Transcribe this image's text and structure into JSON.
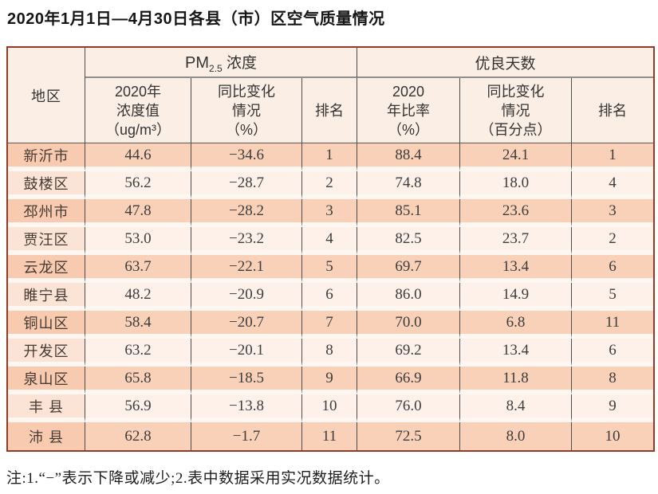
{
  "title": "2020年1月1日—4月30日各县（市）区空气质量情况",
  "table": {
    "corner_header": "地区",
    "group_headers": {
      "pm25": {
        "prefix": "PM",
        "sub": "2.5",
        "suffix": " 浓度"
      },
      "good_days": "优良天数"
    },
    "sub_headers": {
      "pm_value": "2020年\n浓度值\n（ug/m³）",
      "pm_change": "同比变化\n情况\n（%）",
      "pm_rank": "排名",
      "gd_ratio": "2020\n年比率\n（%）",
      "gd_change": "同比变化\n情况\n（百分点）",
      "gd_rank": "排名"
    },
    "rows": [
      {
        "region": "新沂市",
        "pm_value": "44.6",
        "pm_change": "−34.6",
        "pm_rank": "1",
        "gd_ratio": "88.4",
        "gd_change": "24.1",
        "gd_rank": "1"
      },
      {
        "region": "鼓楼区",
        "pm_value": "56.2",
        "pm_change": "−28.7",
        "pm_rank": "2",
        "gd_ratio": "74.8",
        "gd_change": "18.0",
        "gd_rank": "4"
      },
      {
        "region": "邳州市",
        "pm_value": "47.8",
        "pm_change": "−28.2",
        "pm_rank": "3",
        "gd_ratio": "85.1",
        "gd_change": "23.6",
        "gd_rank": "3"
      },
      {
        "region": "贾汪区",
        "pm_value": "53.0",
        "pm_change": "−23.2",
        "pm_rank": "4",
        "gd_ratio": "82.5",
        "gd_change": "23.7",
        "gd_rank": "2"
      },
      {
        "region": "云龙区",
        "pm_value": "63.7",
        "pm_change": "−22.1",
        "pm_rank": "5",
        "gd_ratio": "69.7",
        "gd_change": "13.4",
        "gd_rank": "6"
      },
      {
        "region": "睢宁县",
        "pm_value": "48.2",
        "pm_change": "−20.9",
        "pm_rank": "6",
        "gd_ratio": "86.0",
        "gd_change": "14.9",
        "gd_rank": "5"
      },
      {
        "region": "铜山区",
        "pm_value": "58.4",
        "pm_change": "−20.7",
        "pm_rank": "7",
        "gd_ratio": "70.0",
        "gd_change": "6.8",
        "gd_rank": "11"
      },
      {
        "region": "开发区",
        "pm_value": "63.2",
        "pm_change": "−20.1",
        "pm_rank": "8",
        "gd_ratio": "69.2",
        "gd_change": "13.4",
        "gd_rank": "6"
      },
      {
        "region": "泉山区",
        "pm_value": "65.8",
        "pm_change": "−18.5",
        "pm_rank": "9",
        "gd_ratio": "66.9",
        "gd_change": "11.8",
        "gd_rank": "8"
      },
      {
        "region": "丰 县",
        "pm_value": "56.9",
        "pm_change": "−13.8",
        "pm_rank": "10",
        "gd_ratio": "76.0",
        "gd_change": "8.4",
        "gd_rank": "9"
      },
      {
        "region": "沛 县",
        "pm_value": "62.8",
        "pm_change": "−1.7",
        "pm_rank": "11",
        "gd_ratio": "72.5",
        "gd_change": "8.0",
        "gd_rank": "10"
      }
    ]
  },
  "note": "注:1.“−”表示下降或减少;2.表中数据采用实况数据统计。",
  "colors": {
    "outer_border": "#8f3b26",
    "header_bg": "#fbefe5",
    "row_odd_bg": "#f9d0b8",
    "row_even_bg": "#fdf1e9",
    "row_separator": "#fef7f1",
    "grid_line": "#4d4d4d"
  },
  "chart_data": {
    "type": "table",
    "title": "2020年1月1日—4月30日各县（市）区空气质量情况",
    "columns": [
      "地区",
      "PM2.5浓度 2020年浓度值(ug/m³)",
      "PM2.5浓度 同比变化情况(%)",
      "PM2.5浓度 排名",
      "优良天数 2020年比率(%)",
      "优良天数 同比变化情况(百分点)",
      "优良天数 排名"
    ],
    "rows": [
      [
        "新沂市",
        44.6,
        -34.6,
        1,
        88.4,
        24.1,
        1
      ],
      [
        "鼓楼区",
        56.2,
        -28.7,
        2,
        74.8,
        18.0,
        4
      ],
      [
        "邳州市",
        47.8,
        -28.2,
        3,
        85.1,
        23.6,
        3
      ],
      [
        "贾汪区",
        53.0,
        -23.2,
        4,
        82.5,
        23.7,
        2
      ],
      [
        "云龙区",
        63.7,
        -22.1,
        5,
        69.7,
        13.4,
        6
      ],
      [
        "睢宁县",
        48.2,
        -20.9,
        6,
        86.0,
        14.9,
        5
      ],
      [
        "铜山区",
        58.4,
        -20.7,
        7,
        70.0,
        6.8,
        11
      ],
      [
        "开发区",
        63.2,
        -20.1,
        8,
        69.2,
        13.4,
        6
      ],
      [
        "泉山区",
        65.8,
        -18.5,
        9,
        66.9,
        11.8,
        8
      ],
      [
        "丰县",
        56.9,
        -13.8,
        10,
        76.0,
        8.4,
        9
      ],
      [
        "沛县",
        62.8,
        -1.7,
        11,
        72.5,
        8.0,
        10
      ]
    ]
  }
}
